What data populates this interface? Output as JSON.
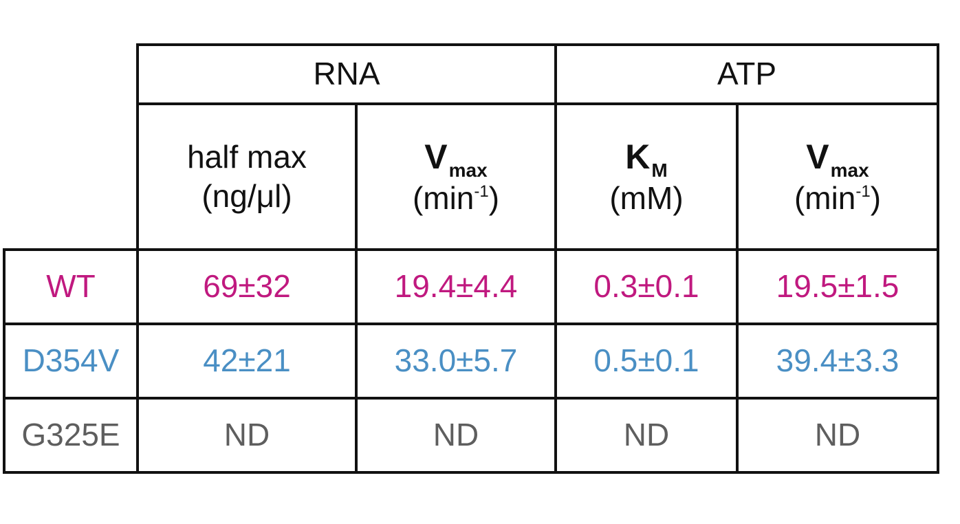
{
  "header_groups": [
    {
      "label": "RNA"
    },
    {
      "label": "ATP"
    }
  ],
  "columns": [
    {
      "line1": "half max",
      "line2": "(ng/μl)"
    },
    {
      "symbol": "V",
      "subscript": "max",
      "unit_open": "(min",
      "unit_sup": "-1",
      "unit_close": ")"
    },
    {
      "symbol": "K",
      "subscript": "M",
      "unit": "(mM)"
    },
    {
      "symbol": "V",
      "subscript": "max",
      "unit_open": "(min",
      "unit_sup": "-1",
      "unit_close": ")"
    }
  ],
  "rows": [
    {
      "label": "WT",
      "color": "#c0197f",
      "values": [
        "69±32",
        "19.4±4.4",
        "0.3±0.1",
        "19.5±1.5"
      ]
    },
    {
      "label": "D354V",
      "color": "#4a8fc4",
      "values": [
        "42±21",
        "33.0±5.7",
        "0.5±0.1",
        "39.4±3.3"
      ]
    },
    {
      "label": "G325E",
      "color": "#5e5e5e",
      "values": [
        "ND",
        "ND",
        "ND",
        "ND"
      ]
    }
  ]
}
